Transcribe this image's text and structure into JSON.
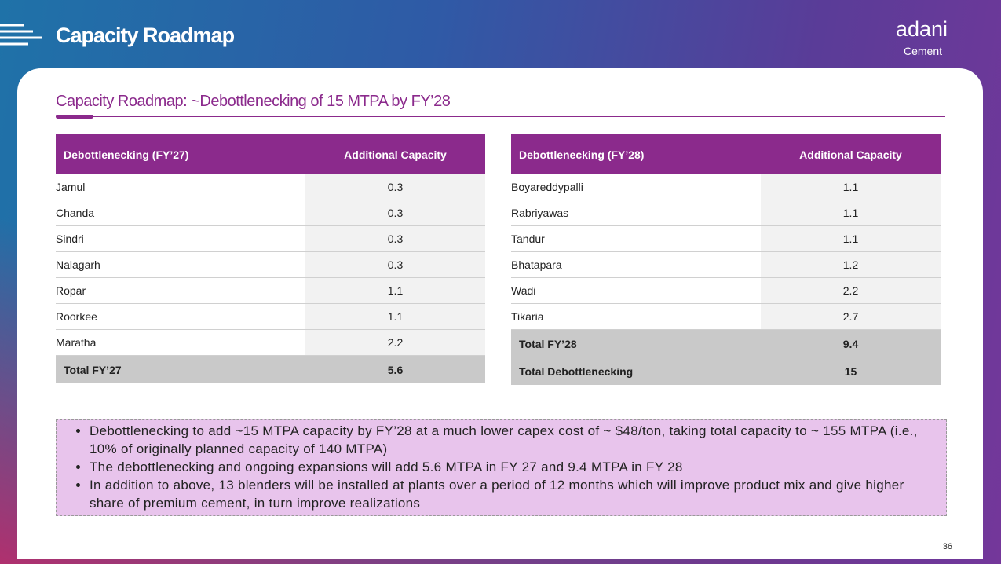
{
  "header": {
    "title": "Capacity Roadmap",
    "logo": "adani",
    "logo_sub": "Cement"
  },
  "subtitle": "Capacity Roadmap:  ~Debottlenecking of 15 MTPA by FY’28",
  "tables": [
    {
      "columns": [
        "Debottlenecking (FY’27)",
        "Additional Capacity"
      ],
      "rows": [
        [
          "Jamul",
          "0.3"
        ],
        [
          "Chanda",
          "0.3"
        ],
        [
          "Sindri",
          "0.3"
        ],
        [
          "Nalagarh",
          "0.3"
        ],
        [
          "Ropar",
          "1.1"
        ],
        [
          "Roorkee",
          "1.1"
        ],
        [
          "Maratha",
          "2.2"
        ]
      ],
      "totals": [
        [
          "Total FY’27",
          "5.6"
        ]
      ]
    },
    {
      "columns": [
        "Debottlenecking (FY’28)",
        "Additional Capacity"
      ],
      "rows": [
        [
          "Boyareddypalli",
          "1.1"
        ],
        [
          "Rabriyawas",
          "1.1"
        ],
        [
          "Tandur",
          "1.1"
        ],
        [
          "Bhatapara",
          "1.2"
        ],
        [
          "Wadi",
          "2.2"
        ],
        [
          "Tikaria",
          "2.7"
        ]
      ],
      "totals": [
        [
          "Total FY’28",
          "9.4"
        ],
        [
          "Total Debottlenecking",
          "15"
        ]
      ]
    }
  ],
  "bullets": [
    "Debottlenecking to add ~15 MTPA capacity by FY’28 at a much lower capex cost of ~ $48/ton, taking total capacity to ~ 155 MTPA (i.e., 10% of originally planned capacity of 140 MTPA)",
    "The debottlenecking and ongoing expansions will add 5.6 MTPA in FY 27 and 9.4 MTPA in FY 28",
    "In addition to above, 13 blenders will be installed at plants over a period of 12 months which will improve product mix and give higher share of premium cement, in turn improve realizations"
  ],
  "page_number": "36"
}
